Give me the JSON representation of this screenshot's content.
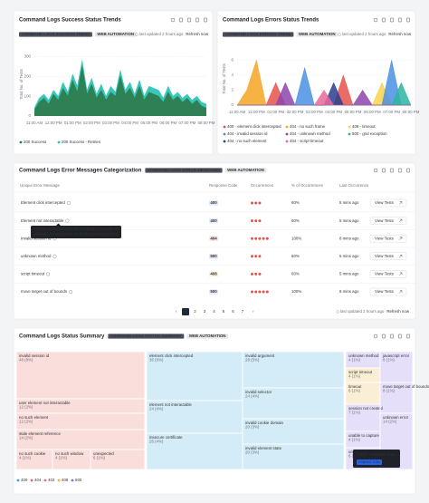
{
  "chart_data": [
    {
      "type": "area",
      "title": "Command Logs Success Status Trends",
      "tags": [
        "COMMAND LOGS SUCCESS TREND",
        "WEB AUTOMATION"
      ],
      "status": "last updated 2 hours ago",
      "refresh": "Refresh now",
      "ylabel": "Total No. of Tests",
      "categories": [
        "11:00 AM",
        null,
        null,
        null,
        "12:00 PM",
        null,
        null,
        null,
        "01:00 PM",
        null,
        null,
        null,
        "02:00 PM",
        null,
        null,
        null,
        "03:00 PM",
        null,
        null,
        null,
        "04:00 PM",
        null,
        null,
        null,
        "05:00 PM",
        null,
        null,
        null,
        "06:00 PM",
        null,
        null,
        null,
        "07:00 PM",
        null,
        null,
        null,
        "08:00 PM"
      ],
      "series": [
        {
          "name": "200 Success",
          "color": "#2e7d4f",
          "values": [
            30,
            70,
            90,
            60,
            110,
            80,
            140,
            100,
            180,
            120,
            250,
            110,
            160,
            90,
            130,
            80,
            120,
            100,
            200,
            110,
            140,
            90,
            150,
            80,
            120,
            110,
            100,
            70,
            120,
            80,
            100,
            70,
            90,
            60,
            80,
            50,
            40
          ]
        },
        {
          "name": "200 Success - Retries",
          "color": "#2ec4b6",
          "values": [
            40,
            90,
            110,
            80,
            130,
            100,
            170,
            120,
            210,
            150,
            280,
            130,
            190,
            110,
            160,
            100,
            150,
            120,
            230,
            130,
            170,
            110,
            180,
            100,
            150,
            140,
            130,
            90,
            150,
            100,
            120,
            90,
            110,
            80,
            100,
            70,
            60
          ]
        }
      ],
      "ylim": [
        0,
        320
      ],
      "yticks": [
        0,
        100,
        200,
        300
      ],
      "grid": true,
      "legend": "bottom"
    },
    {
      "type": "area",
      "title": "Command Logs Errors Status Trends",
      "tags": [
        "COMMAND LOGS ERRORS TREND",
        "WEB AUTOMATION"
      ],
      "status": "last updated 2 hours ago",
      "refresh": "Refresh now",
      "ylabel": "Total No. of Tests",
      "categories": [
        "11:00 AM",
        null,
        "12:00 PM",
        null,
        "01:00 PM",
        null,
        "02:00 PM",
        null,
        "03:00 PM",
        null,
        "04:00 PM",
        null,
        "05:00 PM",
        null,
        "06:00 PM",
        null,
        "07:00 PM",
        null,
        "08:00 PM"
      ],
      "series": [
        {
          "name": "400 - element click intercepted",
          "color": "#e5534b",
          "values": [
            0,
            0,
            0,
            0,
            3,
            0,
            0,
            0,
            0,
            0,
            0,
            4,
            0,
            0,
            0,
            0,
            0,
            0,
            0
          ]
        },
        {
          "name": "404 - no such frame",
          "color": "#f5a623",
          "values": [
            0,
            2,
            6,
            0,
            0,
            0,
            0,
            0,
            0,
            0,
            0,
            0,
            0,
            0,
            0,
            0,
            0,
            0,
            0
          ]
        },
        {
          "name": "409 - timeout",
          "color": "#f8d44c",
          "values": [
            0,
            0,
            0,
            0,
            0,
            0,
            0,
            0,
            0,
            0,
            0,
            0,
            0,
            0,
            0,
            3,
            0,
            0,
            0
          ]
        },
        {
          "name": "404 - invalid session id",
          "color": "#4a90e2",
          "values": [
            0,
            0,
            0,
            0,
            0,
            0,
            0,
            5,
            0,
            0,
            0,
            0,
            0,
            0,
            0,
            0,
            6,
            0,
            0
          ]
        },
        {
          "name": "404 - unknown method",
          "color": "#8e44ad",
          "values": [
            0,
            0,
            0,
            0,
            0,
            3,
            0,
            0,
            0,
            0,
            0,
            0,
            0,
            2,
            0,
            0,
            0,
            0,
            0
          ]
        },
        {
          "name": "500 - grid exception",
          "color": "#2bb5a0",
          "values": [
            0,
            0,
            0,
            0,
            0,
            0,
            0,
            0,
            0,
            0,
            0,
            0,
            0,
            0,
            0,
            0,
            0,
            3,
            0
          ]
        },
        {
          "name": "404 - no such element",
          "color": "#2c3e8f",
          "values": [
            0,
            0,
            0,
            0,
            0,
            0,
            0,
            0,
            0,
            0,
            3,
            0,
            0,
            0,
            0,
            0,
            0,
            0,
            0
          ]
        },
        {
          "name": "404 - script timeout",
          "color": "#e96a9a",
          "values": [
            0,
            0,
            0,
            0,
            0,
            0,
            0,
            0,
            0,
            2,
            0,
            0,
            0,
            0,
            0,
            0,
            0,
            0,
            0
          ]
        }
      ],
      "ylim": [
        0,
        7
      ],
      "yticks": [
        0,
        2,
        4,
        6
      ],
      "grid": true,
      "legend": "bottom"
    }
  ],
  "table_panel": {
    "title": "Command Logs Error Messages Categorization",
    "tags": [
      "COMMAND LOGS ERROR MESSAGES",
      "WEB AUTOMATION"
    ],
    "columns": [
      "Unique Error Message",
      "Response Code",
      "Occurrences",
      "% of Occurrences",
      "Last Occurrence"
    ],
    "rows": [
      [
        "Element click intercepted",
        "400",
        3,
        "60%",
        "5 mins ago",
        "View Tests"
      ],
      [
        "Element not interactable",
        "400",
        3,
        "60%",
        "5 mins ago",
        "View Tests"
      ],
      [
        "Invalid session id",
        "404",
        5,
        "100%",
        "8 mins ago",
        "View Tests"
      ],
      [
        "unknown method",
        "500",
        3,
        "60%",
        "5 mins ago",
        "View Tests"
      ],
      [
        "script timeout",
        "408",
        3,
        "60%",
        "5 mins ago",
        "View Tests"
      ],
      [
        "move target out of bounds",
        "500",
        5,
        "100%",
        "8 mins ago",
        "View Tests"
      ]
    ],
    "code_colors": {
      "400": "#3b82f6",
      "404": "#e5534b",
      "408": "#d99a06",
      "500": "#7c5cd6"
    },
    "occurrence_color": "#e5534b",
    "tooltip": [
      "A command could not be completed because the",
      "element is not pointer- or keyboard interactable."
    ],
    "pages": [
      1,
      2,
      3,
      4,
      5,
      6,
      7
    ],
    "status": "last updated 2 hours ago",
    "refresh": "Refresh now"
  },
  "treemap_panel": {
    "title": "Command Logs Status Summary",
    "tags": [
      "COMMAND LOGS STATUS SUMMARY",
      "WEB AUTOMATION"
    ],
    "tiles": [
      {
        "label": "invalid session id",
        "value": "48 (8%)",
        "color": "#e8675e"
      },
      {
        "label": "user element not interactable",
        "value": "12 (2%)",
        "color": "#e8675e"
      },
      {
        "label": "no such element",
        "value": "12 (2%)",
        "color": "#e8675e"
      },
      {
        "label": "stale element reference",
        "value": "14 (2%)",
        "color": "#e8675e"
      },
      {
        "label": "no such cookie",
        "value": "4 (1%)",
        "color": "#e8675e"
      },
      {
        "label": "no such window",
        "value": "4 (1%)",
        "color": "#e8675e"
      },
      {
        "label": "unexpected",
        "value": "6 (1%)",
        "color": "#e8675e"
      },
      {
        "label": "element click intercepted",
        "value": "36 (6%)",
        "color": "#3ba3e0"
      },
      {
        "label": "element not interactable",
        "value": "24 (4%)",
        "color": "#3ba3e0"
      },
      {
        "label": "insecure certificate",
        "value": "26 (4%)",
        "color": "#3ba3e0"
      },
      {
        "label": "invalid argument",
        "value": "28 (5%)",
        "color": "#3ba3e0"
      },
      {
        "label": "invalid selector",
        "value": "24 (4%)",
        "color": "#3ba3e0"
      },
      {
        "label": "invalid cookie domain",
        "value": "20 (3%)",
        "color": "#3ba3e0"
      },
      {
        "label": "invalid element state",
        "value": "20 (3%)",
        "color": "#3ba3e0"
      },
      {
        "label": "unknown method",
        "value": "4 (1%)",
        "color": "#8b6ee6"
      },
      {
        "label": "script timeout",
        "value": "4 (1%)",
        "color": "#e8b73a"
      },
      {
        "label": "timeout",
        "value": "6 (1%)",
        "color": "#e8b73a"
      },
      {
        "label": "session not created",
        "value": "7 (1%)",
        "color": "#8b6ee6"
      },
      {
        "label": "unable to capture",
        "value": "4 (1%)",
        "color": "#8b6ee6"
      },
      {
        "label": "unexpected alert open",
        "value": "6 (1%)",
        "color": "#8b6ee6"
      },
      {
        "label": "javascript error",
        "value": "8 (1%)",
        "color": "#8b6ee6"
      },
      {
        "label": "move target out of bounds",
        "value": "8 (1%)",
        "color": "#8b6ee6"
      },
      {
        "label": "unknown error",
        "value": "14 (2%)",
        "color": "#8b6ee6"
      }
    ],
    "legend": [
      {
        "label": "400",
        "color": "#3ba3e0"
      },
      {
        "label": "404",
        "color": "#e8675e"
      },
      {
        "label": "403",
        "color": "#e86fa6"
      },
      {
        "label": "408",
        "color": "#e8b73a"
      },
      {
        "label": "500",
        "color": "#8b6ee6"
      }
    ],
    "tooltip": {
      "title": "> 500 - unknown error",
      "action": "Inspect now"
    }
  }
}
